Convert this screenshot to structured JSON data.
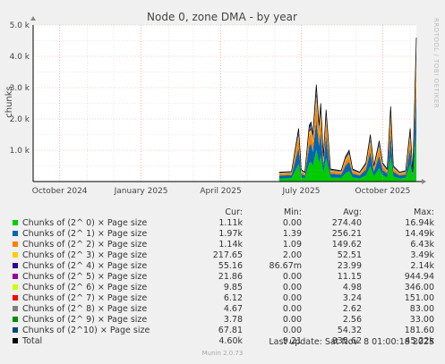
{
  "chart_data": {
    "type": "area",
    "title": "Node 0, zone DMA - by year",
    "ylabel": "chunks",
    "ylim": [
      0,
      5000
    ],
    "y_ticks": [
      "5.0 k",
      "4.0 k",
      "3.0 k",
      "2.0 k",
      "1.0 k"
    ],
    "y_tick_values": [
      5000,
      4000,
      3000,
      2000,
      1000
    ],
    "x_ticks": [
      "October 2024",
      "January 2025",
      "April 2025",
      "July 2025",
      "October 2025"
    ],
    "x_tick_dates": [
      "2024-10-01",
      "2025-01-01",
      "2025-04-01",
      "2025-07-01",
      "2025-10-01"
    ],
    "x_range": [
      "2024-09-01",
      "2025-11-08"
    ],
    "grid": true,
    "total_series": {
      "name": "Total",
      "points": [
        [
          "2025-06-06",
          300
        ],
        [
          "2025-06-20",
          320
        ],
        [
          "2025-06-28",
          1700
        ],
        [
          "2025-07-01",
          380
        ],
        [
          "2025-07-05",
          300
        ],
        [
          "2025-07-10",
          1800
        ],
        [
          "2025-07-12",
          1900
        ],
        [
          "2025-07-14",
          1500
        ],
        [
          "2025-07-18",
          3100
        ],
        [
          "2025-07-21",
          1800
        ],
        [
          "2025-07-23",
          2500
        ],
        [
          "2025-07-26",
          800
        ],
        [
          "2025-07-29",
          2300
        ],
        [
          "2025-08-03",
          400
        ],
        [
          "2025-08-15",
          350
        ],
        [
          "2025-08-20",
          800
        ],
        [
          "2025-08-24",
          1000
        ],
        [
          "2025-08-28",
          400
        ],
        [
          "2025-09-05",
          300
        ],
        [
          "2025-09-12",
          600
        ],
        [
          "2025-09-17",
          1500
        ],
        [
          "2025-09-21",
          500
        ],
        [
          "2025-09-27",
          1300
        ],
        [
          "2025-10-01",
          600
        ],
        [
          "2025-10-06",
          400
        ],
        [
          "2025-10-10",
          2400
        ],
        [
          "2025-10-13",
          500
        ],
        [
          "2025-10-20",
          300
        ],
        [
          "2025-10-27",
          350
        ],
        [
          "2025-11-01",
          1700
        ],
        [
          "2025-11-04",
          300
        ],
        [
          "2025-11-08",
          4600
        ]
      ]
    },
    "series": [
      {
        "name": "Chunks of (2^ 0) × Page size",
        "color": "#00cc00",
        "cur": "1.11k",
        "min": "0.00",
        "avg": "274.40",
        "max": "16.94k"
      },
      {
        "name": "Chunks of (2^ 1) × Page size",
        "color": "#0066b3",
        "cur": "1.97k",
        "min": "1.39",
        "avg": "256.21",
        "max": "14.49k"
      },
      {
        "name": "Chunks of (2^ 2) × Page size",
        "color": "#ff8000",
        "cur": "1.14k",
        "min": "1.09",
        "avg": "149.62",
        "max": "6.43k"
      },
      {
        "name": "Chunks of (2^ 3) × Page size",
        "color": "#ffcc00",
        "cur": "217.65",
        "min": "2.00",
        "avg": "52.51",
        "max": "3.49k"
      },
      {
        "name": "Chunks of (2^ 4) × Page size",
        "color": "#330099",
        "cur": "55.16",
        "min": "86.67m",
        "avg": "23.99",
        "max": "2.14k"
      },
      {
        "name": "Chunks of (2^ 5) × Page size",
        "color": "#990099",
        "cur": "21.86",
        "min": "0.00",
        "avg": "11.15",
        "max": "944.94"
      },
      {
        "name": "Chunks of (2^ 6) × Page size",
        "color": "#ccff00",
        "cur": "9.85",
        "min": "0.00",
        "avg": "4.98",
        "max": "346.00"
      },
      {
        "name": "Chunks of (2^ 7) × Page size",
        "color": "#ff0000",
        "cur": "6.12",
        "min": "0.00",
        "avg": "3.24",
        "max": "151.00"
      },
      {
        "name": "Chunks of (2^ 8) × Page size",
        "color": "#808080",
        "cur": "4.67",
        "min": "0.00",
        "avg": "2.62",
        "max": "83.00"
      },
      {
        "name": "Chunks of (2^ 9) × Page size",
        "color": "#008f00",
        "cur": "3.78",
        "min": "0.00",
        "avg": "2.56",
        "max": "33.00"
      },
      {
        "name": "Chunks of (2^10) × Page size",
        "color": "#00487d",
        "cur": "67.81",
        "min": "0.00",
        "avg": "54.32",
        "max": "181.60"
      },
      {
        "name": "Total",
        "color": "#000000",
        "cur": "4.60k",
        "min": "9.21",
        "avg": "835.62",
        "max": "45.22k"
      }
    ]
  },
  "legend_header": {
    "cur": "Cur:",
    "min": "Min:",
    "avg": "Avg:",
    "max": "Max:"
  },
  "last_update": "Last update: Sat Nov  8 01:00:18 2025",
  "footer": "Munin 2.0.73",
  "rrd_label": "RRDTOOL / TOBI OETIKER"
}
